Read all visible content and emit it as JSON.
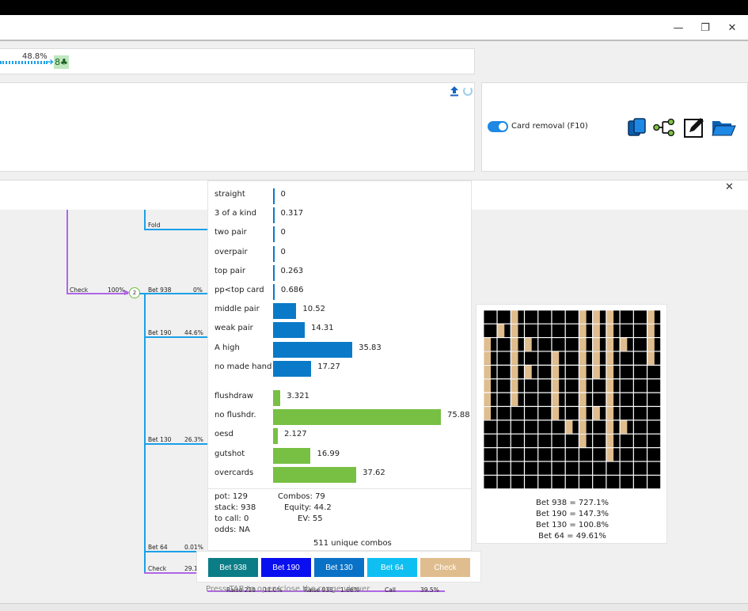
{
  "window": {
    "restore_glyph": "❐",
    "minimize_glyph": "—",
    "close_glyph": "✕"
  },
  "line": {
    "percent": "48.8%",
    "card": "8♣"
  },
  "right_panel": {
    "card_removal_label": "Card removal (F10)",
    "tools": [
      "copy-icon",
      "tree-icon",
      "edit-icon",
      "folder-icon"
    ]
  },
  "tree": {
    "close_glyph": "✕",
    "fold_label": "Fold",
    "check_label": "Check",
    "check_pct": "100%",
    "node_label": "2",
    "bet938_label": "Bet 938",
    "bet938_pct": "0%",
    "bet190_label": "Bet 190",
    "bet190_pct": "44.6%",
    "bet130_label": "Bet 130",
    "bet130_pct": "26.3%",
    "bet64_label": "Bet 64",
    "bet64_pct": "0.01%",
    "check2_label": "Check",
    "check2_pct": "29.1",
    "bottom_raise210": "Raise 210",
    "bottom_raise210_pct": "11.0%",
    "bottom_raise938": "Raise 938",
    "bottom_raise938_pct": "1.66%",
    "bottom_call": "Call",
    "bottom_call_pct": "39.5%"
  },
  "hand_classes": {
    "made": [
      {
        "label": "straight",
        "value": 0
      },
      {
        "label": "3 of a kind",
        "value": 0.317
      },
      {
        "label": "two pair",
        "value": 0
      },
      {
        "label": "overpair",
        "value": 0
      },
      {
        "label": "top pair",
        "value": 0.263
      },
      {
        "label": "pp<top card",
        "value": 0.686
      },
      {
        "label": "middle pair",
        "value": 10.52
      },
      {
        "label": "weak pair",
        "value": 14.31
      },
      {
        "label": "A high",
        "value": 35.83
      },
      {
        "label": "no made hand",
        "value": 17.27
      }
    ],
    "draws": [
      {
        "label": "flushdraw",
        "value": 3.321
      },
      {
        "label": "no flushdr.",
        "value": 75.88
      },
      {
        "label": "oesd",
        "value": 2.127
      },
      {
        "label": "gutshot",
        "value": 16.99
      },
      {
        "label": "overcards",
        "value": 37.62
      }
    ],
    "made_color": "#0a7ac8",
    "draw_color": "#77c043"
  },
  "stats": {
    "pot": "pot: 129",
    "stack": "stack: 938",
    "to_call": "to call: 0",
    "odds": "odds: NA",
    "combos": "Combos: 79",
    "equity": "Equity: 44.2",
    "ev": "EV: 55",
    "unique": "511 unique combos"
  },
  "actions": [
    {
      "label": "Bet 938",
      "color": "#0b7d86"
    },
    {
      "label": "Bet 190",
      "color": "#0a0ff0"
    },
    {
      "label": "Bet 130",
      "color": "#0a72c6"
    },
    {
      "label": "Bet 64",
      "color": "#0fbff2"
    },
    {
      "label": "Check",
      "color": "#e0bd8e"
    }
  ],
  "hint": "Press TAB to open/close the range viewer",
  "range": {
    "lines": [
      "Bet 938 = 727.1%",
      "Bet 190 = 147.3%",
      "Bet 130 = 100.8%",
      "Bet 64 = 49.61%"
    ],
    "tan_color": "#e0bd8e"
  }
}
